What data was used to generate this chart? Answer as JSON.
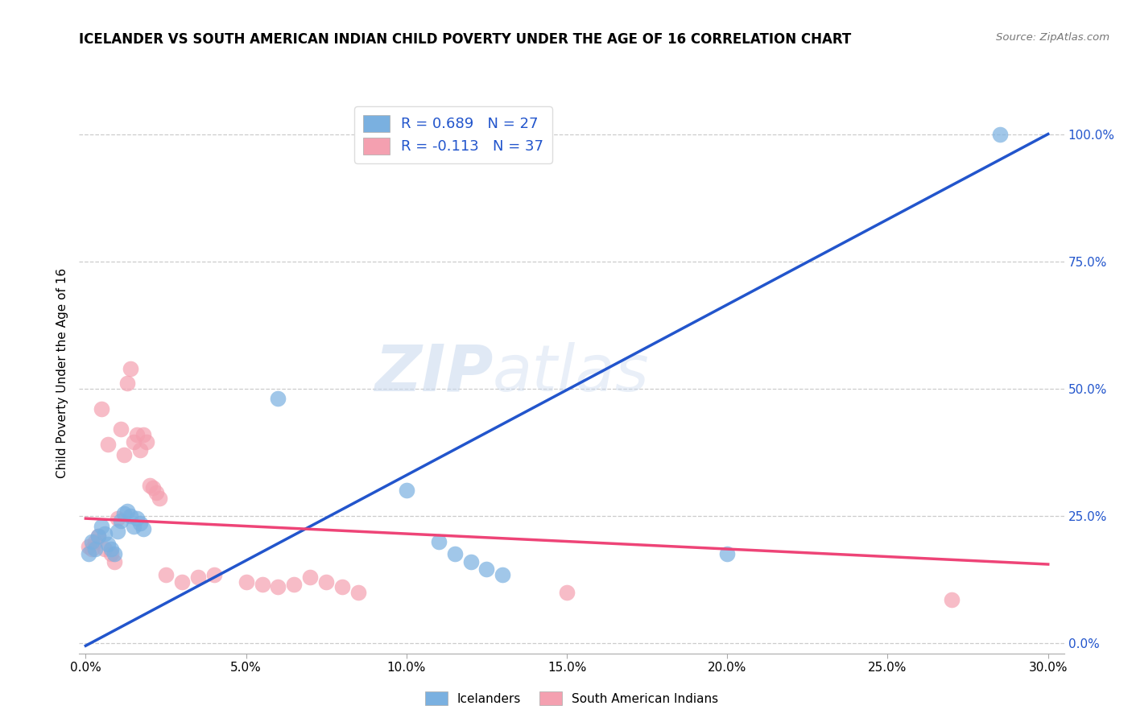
{
  "title": "ICELANDER VS SOUTH AMERICAN INDIAN CHILD POVERTY UNDER THE AGE OF 16 CORRELATION CHART",
  "source": "Source: ZipAtlas.com",
  "ylabel": "Child Poverty Under the Age of 16",
  "xlabel_vals": [
    0.0,
    0.05,
    0.1,
    0.15,
    0.2,
    0.25,
    0.3
  ],
  "ylabel_vals": [
    0.0,
    0.25,
    0.5,
    0.75,
    1.0
  ],
  "xlim": [
    -0.002,
    0.305
  ],
  "ylim": [
    -0.02,
    1.08
  ],
  "icelanders_color": "#7ab0e0",
  "south_american_color": "#f4a0b0",
  "icelanders_line_color": "#2255cc",
  "south_american_line_color": "#ee4477",
  "ytick_color": "#2255cc",
  "R_icelanders": 0.689,
  "N_icelanders": 27,
  "R_south_american": -0.113,
  "N_south_american": 37,
  "legend_label_1": "Icelanders",
  "legend_label_2": "South American Indians",
  "watermark": "ZIPatlas",
  "icelanders_x": [
    0.001,
    0.002,
    0.003,
    0.004,
    0.005,
    0.006,
    0.007,
    0.008,
    0.009,
    0.01,
    0.011,
    0.012,
    0.013,
    0.014,
    0.015,
    0.016,
    0.017,
    0.018,
    0.06,
    0.1,
    0.11,
    0.115,
    0.12,
    0.125,
    0.13,
    0.2,
    0.285
  ],
  "icelanders_y": [
    0.175,
    0.2,
    0.185,
    0.21,
    0.23,
    0.215,
    0.195,
    0.185,
    0.175,
    0.22,
    0.24,
    0.255,
    0.26,
    0.25,
    0.23,
    0.245,
    0.235,
    0.225,
    0.48,
    0.3,
    0.2,
    0.175,
    0.16,
    0.145,
    0.135,
    0.175,
    1.0
  ],
  "south_american_x": [
    0.001,
    0.002,
    0.003,
    0.004,
    0.005,
    0.006,
    0.007,
    0.008,
    0.009,
    0.01,
    0.011,
    0.012,
    0.013,
    0.014,
    0.015,
    0.016,
    0.017,
    0.018,
    0.019,
    0.02,
    0.021,
    0.022,
    0.023,
    0.025,
    0.03,
    0.035,
    0.04,
    0.05,
    0.055,
    0.06,
    0.065,
    0.07,
    0.075,
    0.08,
    0.085,
    0.15,
    0.27
  ],
  "south_american_y": [
    0.19,
    0.185,
    0.2,
    0.21,
    0.46,
    0.185,
    0.39,
    0.175,
    0.16,
    0.245,
    0.42,
    0.37,
    0.51,
    0.54,
    0.395,
    0.41,
    0.38,
    0.41,
    0.395,
    0.31,
    0.305,
    0.295,
    0.285,
    0.135,
    0.12,
    0.13,
    0.135,
    0.12,
    0.115,
    0.11,
    0.115,
    0.13,
    0.12,
    0.11,
    0.1,
    0.1,
    0.085
  ],
  "ice_line_x": [
    0.0,
    0.3
  ],
  "ice_line_y": [
    -0.005,
    1.0
  ],
  "sam_line_x": [
    0.0,
    0.3
  ],
  "sam_line_y": [
    0.245,
    0.155
  ]
}
